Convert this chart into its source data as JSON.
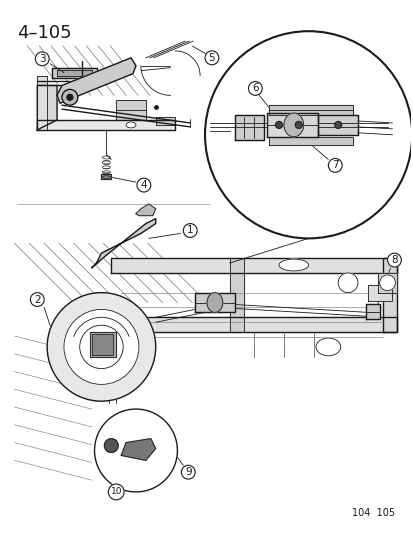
{
  "title_text": "4–105",
  "footer_text": "104  105",
  "bg": "#ffffff",
  "lc": "#1a1a1a",
  "fig_w": 4.14,
  "fig_h": 5.33,
  "dpi": 100
}
